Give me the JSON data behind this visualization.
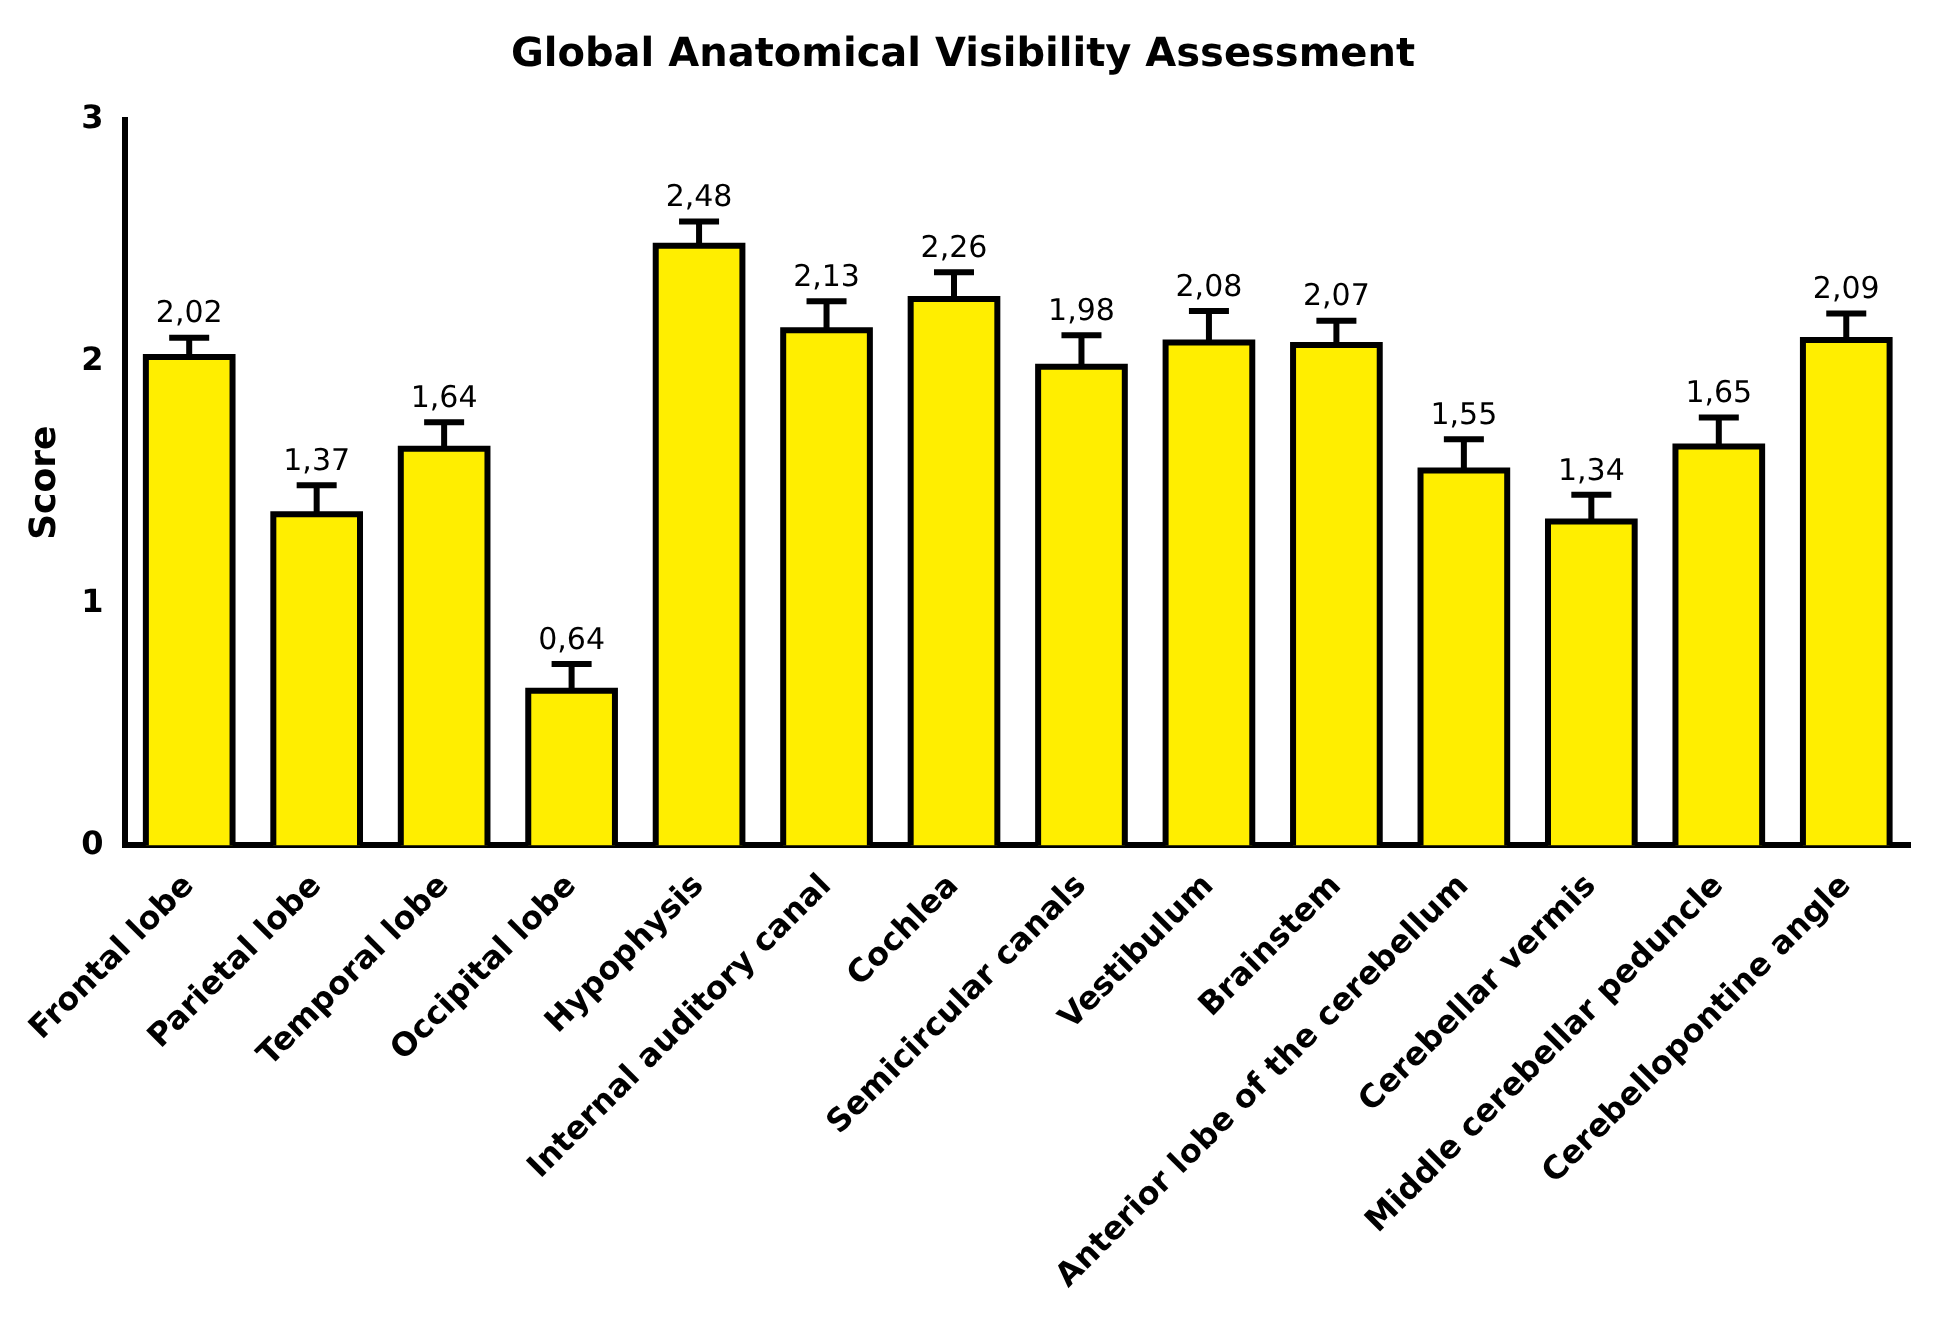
{
  "chart_data": {
    "type": "bar",
    "title": "Global Anatomical Visibility Assessment",
    "ylabel": "Score",
    "categories": [
      "Frontal lobe",
      "Parietal lobe",
      "Temporal lobe",
      "Occipital lobe",
      "Hypophysis",
      "Internal auditory canal",
      "Cochlea",
      "Semicircular canals",
      "Vestibulum",
      "Brainstem",
      "Anterior lobe of the cerebellum",
      "Cerebellar vermis",
      "Middle cerebellar peduncle",
      "Cerebellopontine angle"
    ],
    "values": [
      2.02,
      1.37,
      1.64,
      0.64,
      2.48,
      2.13,
      2.26,
      1.98,
      2.08,
      2.07,
      1.55,
      1.34,
      1.65,
      2.09
    ],
    "errors": [
      0.08,
      0.12,
      0.11,
      0.11,
      0.1,
      0.12,
      0.11,
      0.13,
      0.13,
      0.1,
      0.13,
      0.11,
      0.12,
      0.11
    ],
    "value_labels": [
      "2,02",
      "1,37",
      "1,64",
      "0,64",
      "2,48",
      "2,13",
      "2,26",
      "1,98",
      "2,08",
      "2,07",
      "1,55",
      "1,34",
      "1,65",
      "2,09"
    ],
    "color": "#ffee00",
    "ylim": [
      0,
      3
    ],
    "yticks": [
      0,
      1,
      2,
      3
    ],
    "grid": false,
    "legend": false
  }
}
